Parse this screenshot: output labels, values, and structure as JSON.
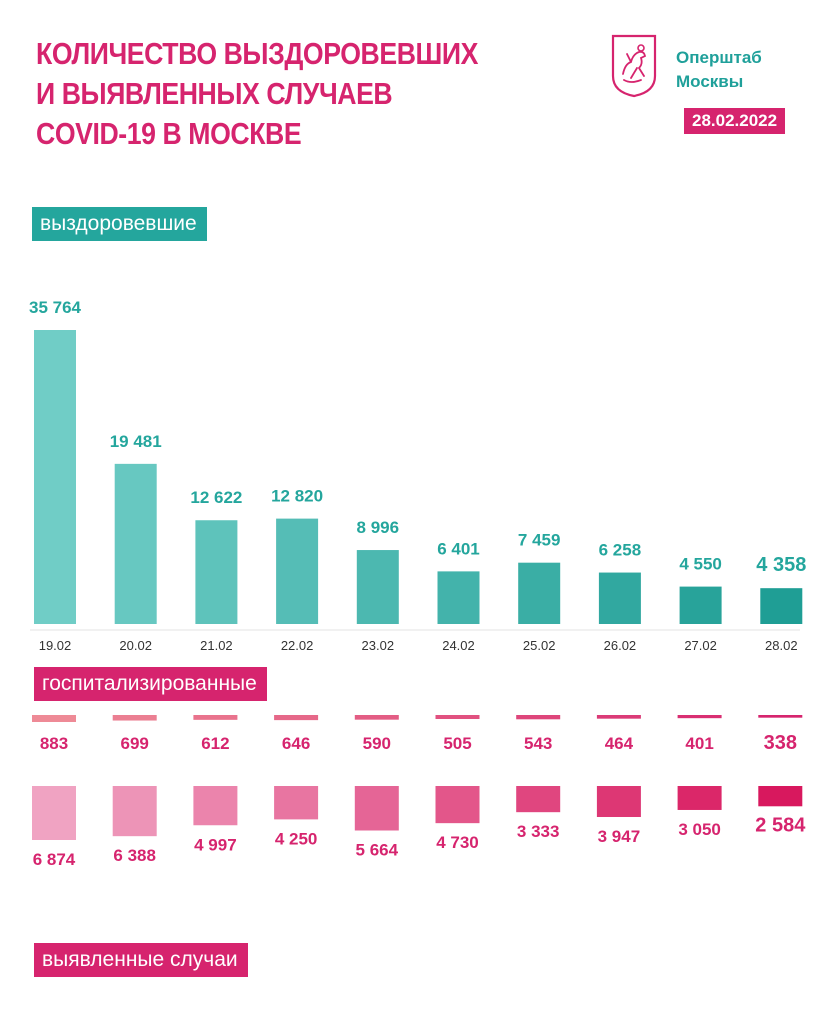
{
  "header": {
    "title_lines": [
      "КОЛИЧЕСТВО ВЫЗДОРОВЕВШИХ",
      "И ВЫЯВЛЕННЫХ СЛУЧАЕВ",
      "COVID-19 В МОСКВЕ"
    ],
    "brand_lines": [
      "Оперштаб",
      "Москвы"
    ],
    "date": "28.02.2022"
  },
  "labels": {
    "recovered": "выздоровевшие",
    "hospitalized": "госпитализированные",
    "cases": "выявленные случаи"
  },
  "colors": {
    "teal": "#24a69d",
    "pink": "#d6246e"
  },
  "chart_data": {
    "type": "bar",
    "categories": [
      "19.02",
      "20.02",
      "21.02",
      "22.02",
      "23.02",
      "24.02",
      "25.02",
      "26.02",
      "27.02",
      "28.02"
    ],
    "series": [
      {
        "name": "выздоровевшие",
        "values": [
          35764,
          19481,
          12622,
          12820,
          8996,
          6401,
          7459,
          6258,
          4550,
          4358
        ],
        "labels": [
          "35 764",
          "19 481",
          "12 622",
          "12 820",
          "8 996",
          "6 401",
          "7 459",
          "6 258",
          "4 550",
          "4 358"
        ]
      },
      {
        "name": "госпитализированные",
        "values": [
          883,
          699,
          612,
          646,
          590,
          505,
          543,
          464,
          401,
          338
        ],
        "labels": [
          "883",
          "699",
          "612",
          "646",
          "590",
          "505",
          "543",
          "464",
          "401",
          "338"
        ]
      },
      {
        "name": "выявленные случаи",
        "values": [
          6874,
          6388,
          4997,
          4250,
          5664,
          4730,
          3333,
          3947,
          3050,
          2584
        ],
        "labels": [
          "6 874",
          "6 388",
          "4 997",
          "4 250",
          "5 664",
          "4 730",
          "3 333",
          "3 947",
          "3 050",
          "2 584"
        ]
      }
    ]
  }
}
